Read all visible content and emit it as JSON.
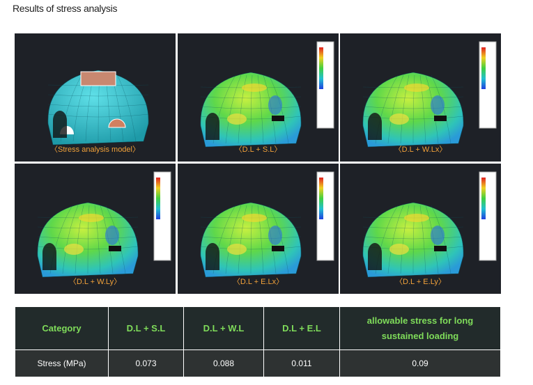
{
  "title": "Results of stress analysis",
  "panels": [
    "〈Stress analysis model〉",
    "〈D.L + S.L〉",
    "〈D.L + W.Lx〉",
    "〈D.L + W.Ly〉",
    "〈D.L + E.Lx〉",
    "〈D.L + E.Ly〉"
  ],
  "table": {
    "header": [
      "Category",
      "D.L + S.L",
      "D.L + W.L",
      "D.L + E.L",
      "allowable stress for long sustained loading"
    ],
    "rows": [
      [
        "Stress (MPa)",
        "0.073",
        "0.088",
        "0.011",
        "0.09"
      ]
    ]
  }
}
